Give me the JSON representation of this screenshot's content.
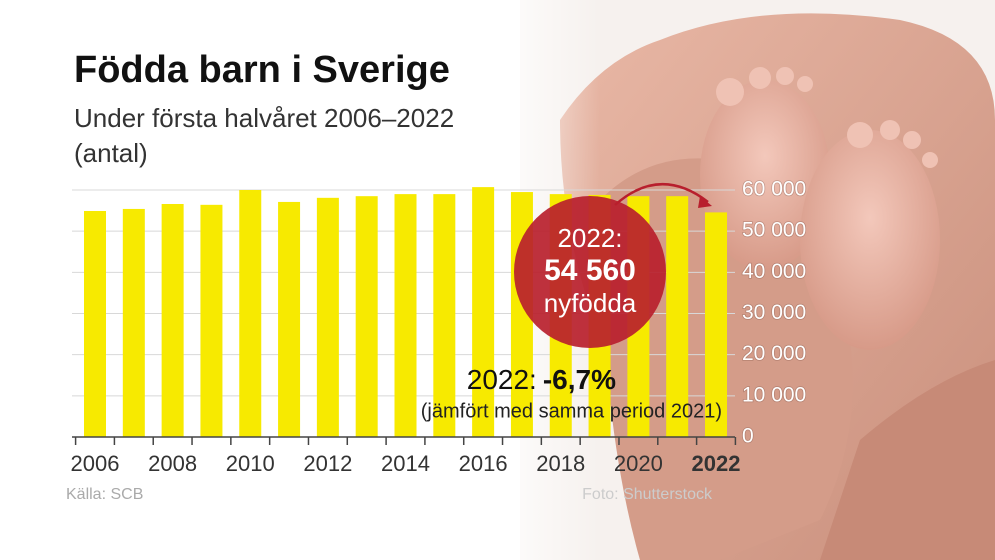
{
  "chart_data": {
    "type": "bar",
    "title": "Födda barn i Sverige",
    "subtitle": "Under första halvåret 2006–2022",
    "unit": "(antal)",
    "categories": [
      "2006",
      null,
      "2008",
      null,
      "2010",
      null,
      "2012",
      null,
      "2014",
      null,
      "2016",
      null,
      "2018",
      null,
      "2020",
      null,
      "2022"
    ],
    "values": [
      54900,
      55400,
      56600,
      56400,
      60000,
      57100,
      58100,
      58500,
      59000,
      59000,
      60700,
      59500,
      59000,
      58800,
      58500,
      58500,
      54560
    ],
    "color": "#f7ea00",
    "ylim": [
      0,
      60000
    ],
    "yticks": [
      {
        "value": 0,
        "label": "0"
      },
      {
        "value": 10000,
        "label": "10 000"
      },
      {
        "value": 20000,
        "label": "20 000"
      },
      {
        "value": 30000,
        "label": "30 000"
      },
      {
        "value": 40000,
        "label": "40 000"
      },
      {
        "value": 50000,
        "label": "50 000"
      },
      {
        "value": 60000,
        "label": "60 000"
      }
    ],
    "grid": true,
    "callout": {
      "label": "2022:",
      "value": 54560,
      "value_label": "54 560",
      "text": "nyfödda"
    },
    "change": {
      "label": "2022:",
      "value": -6.7,
      "value_label": "-6,7%",
      "note": "(jämfört med samma period 2021)"
    },
    "source": "Källa: SCB",
    "photo_credit": "Foto: Shutterstock"
  }
}
